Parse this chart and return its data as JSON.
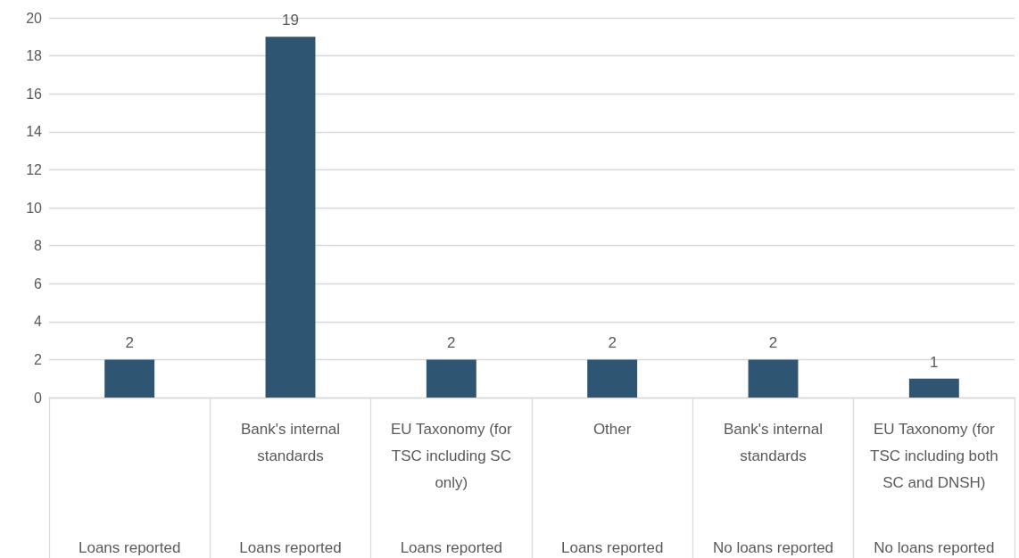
{
  "chart_data": {
    "type": "bar",
    "categories": [
      null,
      "Bank's internal standards",
      "EU Taxonomy (for TSC including SC only)",
      "Other",
      "Bank's internal standards",
      "EU Taxonomy (for TSC including both SC and DNSH)"
    ],
    "annotations": [
      "Loans reported",
      "Loans reported",
      "Loans reported",
      "Loans reported",
      "No loans reported",
      "No loans reported"
    ],
    "values": [
      2,
      19,
      2,
      2,
      2,
      1
    ],
    "color": "#2e5572",
    "ylim": [
      0,
      20
    ],
    "yticks": [
      0,
      2,
      4,
      6,
      8,
      10,
      12,
      14,
      16,
      18,
      20
    ],
    "grid": "y",
    "data_labels": true
  }
}
